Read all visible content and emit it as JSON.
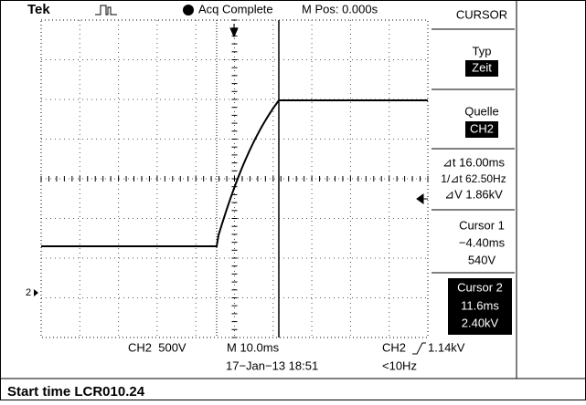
{
  "header": {
    "brand": "Tek",
    "status": "Acq Complete",
    "position": "M Pos: 0.000s"
  },
  "menu": {
    "title": "CURSOR",
    "type_label": "Typ",
    "type_value": "Zeit",
    "source_label": "Quelle",
    "source_value": "CH2",
    "delta_t": "⊿t 16.00ms",
    "inverse_delta_t": "1/⊿t 62.50Hz",
    "delta_v": "⊿V 1.86kV",
    "cursor1": {
      "label": "Cursor 1",
      "time": "−4.40ms",
      "voltage": "540V"
    },
    "cursor2": {
      "label": "Cursor 2",
      "time": "11.6ms",
      "voltage": "2.40kV"
    }
  },
  "screen": {
    "channel_marker": "2"
  },
  "footer": {
    "channel_scale": "CH2  500V",
    "time_scale": "M 10.0ms",
    "trigger_channel": "CH2",
    "trigger_level": "1.14kV",
    "date": "17−Jan−13 18:51",
    "frequency": "<10Hz"
  },
  "caption": "Start time LCR010.24"
}
